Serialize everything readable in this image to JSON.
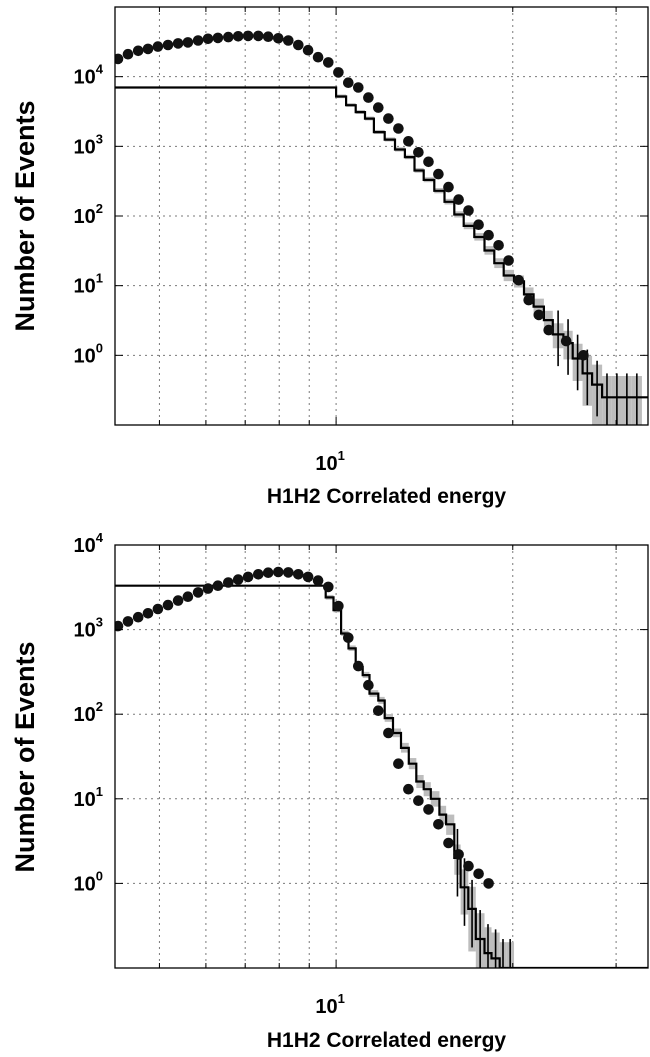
{
  "colors": {
    "band": "#bdbdbd",
    "line": "#000000",
    "points": "#111111"
  },
  "chart_data": [
    {
      "type": "scatter",
      "xlabel": "H1H2 Correlated energy",
      "ylabel": "Number of Events",
      "xscale": "log",
      "yscale": "log",
      "xlim": [
        4.2,
        34
      ],
      "ylim": [
        0.1,
        100000
      ],
      "xticks": [
        {
          "value": 10,
          "base": "10",
          "exp": "1"
        }
      ],
      "yticks": [
        {
          "value": 1,
          "base": "10",
          "exp": "0"
        },
        {
          "value": 10,
          "base": "10",
          "exp": "1"
        },
        {
          "value": 100,
          "base": "10",
          "exp": "2"
        },
        {
          "value": 1000,
          "base": "10",
          "exp": "3"
        },
        {
          "value": 10000,
          "base": "10",
          "exp": "4"
        }
      ],
      "grid": true,
      "series": [
        {
          "style": "points",
          "x": [
            4.25,
            4.42,
            4.6,
            4.78,
            4.97,
            5.17,
            5.38,
            5.59,
            5.82,
            6.05,
            6.29,
            6.55,
            6.81,
            7.08,
            7.37,
            7.66,
            7.97,
            8.29,
            8.62,
            8.96,
            9.32,
            9.7,
            10.09,
            10.49,
            10.91,
            11.35,
            11.8,
            12.28,
            12.77,
            13.28,
            13.81,
            14.37,
            14.94,
            15.54,
            16.17,
            16.81,
            17.49,
            18.19,
            18.92,
            19.68,
            20.47,
            21.29,
            22.15,
            23.03,
            24.67,
            26.4
          ],
          "y": [
            18000,
            21000,
            23500,
            25000,
            27000,
            28500,
            30000,
            31000,
            33000,
            35000,
            36000,
            37000,
            38000,
            38500,
            38500,
            37500,
            35500,
            33000,
            28500,
            24000,
            19000,
            16000,
            11500,
            8200,
            7000,
            5000,
            3600,
            2500,
            1800,
            1180,
            820,
            600,
            400,
            260,
            172,
            120,
            75,
            53,
            38,
            23,
            12,
            6.2,
            3.8,
            2.3,
            1.6,
            1.0
          ]
        },
        {
          "style": "step",
          "x": [
            4.2,
            10.0,
            10.4,
            10.8,
            11.2,
            11.6,
            12.1,
            12.6,
            13.1,
            13.6,
            14.1,
            14.7,
            15.3,
            15.9,
            16.5,
            17.2,
            17.9,
            18.6,
            19.3,
            20.1,
            20.9,
            21.7,
            22.6,
            23.4,
            24.4,
            25.3,
            26.3,
            27.3,
            28.4,
            29.5,
            30.7,
            31.9,
            33.2
          ],
          "y": [
            7000,
            5200,
            3900,
            3100,
            2500,
            1600,
            1250,
            900,
            700,
            450,
            330,
            230,
            160,
            105,
            72,
            50,
            32,
            21,
            14,
            11.5,
            7.5,
            5.0,
            3.2,
            2.0,
            1.5,
            0.9,
            0.55,
            0.38,
            0.25,
            0.25,
            0.25,
            0.25,
            0.25
          ]
        }
      ]
    },
    {
      "type": "scatter",
      "xlabel": "H1H2 Correlated energy",
      "ylabel": "Number of Events",
      "xscale": "log",
      "yscale": "log",
      "xlim": [
        4.2,
        34
      ],
      "ylim": [
        0.1,
        10000
      ],
      "xticks": [
        {
          "value": 10,
          "base": "10",
          "exp": "1"
        }
      ],
      "yticks": [
        {
          "value": 1,
          "base": "10",
          "exp": "0"
        },
        {
          "value": 10,
          "base": "10",
          "exp": "1"
        },
        {
          "value": 100,
          "base": "10",
          "exp": "2"
        },
        {
          "value": 1000,
          "base": "10",
          "exp": "3"
        },
        {
          "value": 10000,
          "base": "10",
          "exp": "4"
        }
      ],
      "grid": true,
      "series": [
        {
          "style": "points",
          "x": [
            4.25,
            4.42,
            4.6,
            4.78,
            4.97,
            5.17,
            5.38,
            5.59,
            5.82,
            6.05,
            6.29,
            6.55,
            6.81,
            7.08,
            7.37,
            7.66,
            7.97,
            8.29,
            8.62,
            8.96,
            9.32,
            9.7,
            10.09,
            10.49,
            10.91,
            11.35,
            11.8,
            12.28,
            12.77,
            13.28,
            13.81,
            14.37,
            14.94,
            15.54,
            16.17,
            16.81,
            17.49,
            18.19
          ],
          "y": [
            1100,
            1250,
            1400,
            1560,
            1750,
            1950,
            2200,
            2450,
            2750,
            3050,
            3300,
            3600,
            3900,
            4200,
            4500,
            4700,
            4800,
            4750,
            4500,
            4200,
            3800,
            3200,
            1900,
            800,
            370,
            220,
            110,
            60,
            26,
            13,
            9.5,
            7.5,
            5.0,
            3.0,
            2.2,
            1.6,
            1.3,
            1.0
          ]
        },
        {
          "style": "step",
          "x": [
            4.2,
            9.6,
            9.9,
            10.2,
            10.5,
            10.8,
            11.1,
            11.4,
            11.8,
            12.1,
            12.5,
            12.9,
            13.3,
            13.7,
            14.1,
            14.5,
            15.0,
            15.4,
            15.9,
            16.3,
            16.8,
            17.3,
            17.9,
            18.4,
            19.0,
            19.5,
            20.1
          ],
          "y": [
            3300,
            2400,
            1700,
            900,
            600,
            360,
            290,
            175,
            145,
            90,
            60,
            40,
            26,
            16,
            13,
            10,
            6.5,
            5.0,
            2.0,
            0.9,
            0.5,
            0.22,
            0.15,
            0.13,
            0.1,
            0.1,
            0.1
          ]
        }
      ]
    }
  ]
}
